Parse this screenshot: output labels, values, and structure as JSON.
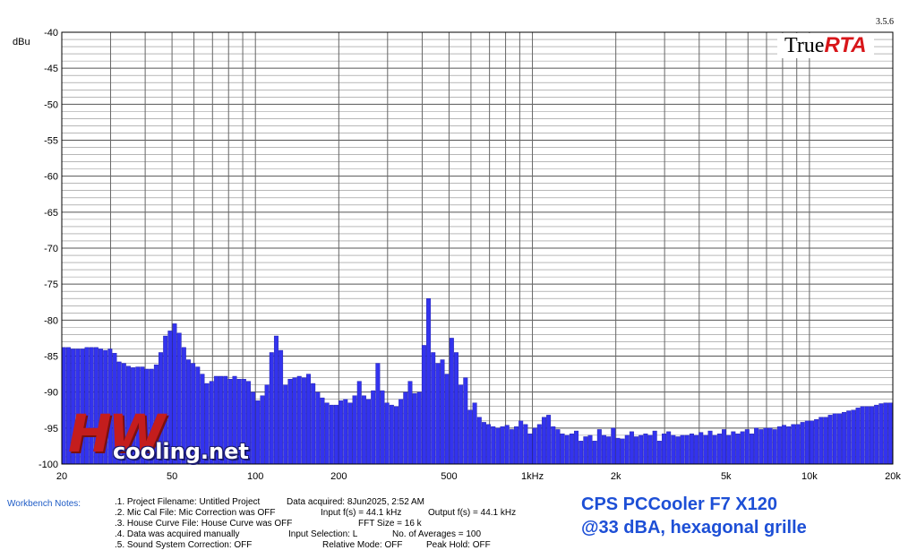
{
  "version": "3.5.6",
  "logo": {
    "true_text": "True",
    "rta_text": "RTA"
  },
  "watermark": {
    "hw_text": "HW",
    "net_text": "cooling.net"
  },
  "notes": {
    "label": "Workbench Notes:",
    "lines": [
      ".1. Project Filename: Untitled Project",
      ".2. Mic Cal File: Mic Correction was OFF",
      ".3. House Curve File: House Curve was OFF",
      ".4. Data was acquired manually",
      ".5. Sound System Correction: OFF"
    ],
    "col2": [
      "Data acquired: 8Jun2025, 2:52 AM",
      "Input f(s) = 44.1 kHz",
      "FFT Size = 16 k",
      "Input Selection: L",
      "Relative Mode:  OFF"
    ],
    "col3": [
      "",
      "Output f(s) = 44.1 kHz",
      "",
      "No. of Averages = 100",
      "Peak Hold: OFF"
    ]
  },
  "caption": {
    "line1": "CPS PCCooler F7 X120",
    "line2": "@33 dBA, hexagonal grille"
  },
  "colors": {
    "bar": "#3333ee",
    "bar_edge": "#1a1aa0",
    "caption": "#1d4fd6",
    "notes_label": "#1e5bc6",
    "rta_red": "#d8161a"
  },
  "chart_data": {
    "type": "bar",
    "ylabel": "dBu",
    "ylim": [
      -100,
      -40
    ],
    "xlim": [
      20,
      20000
    ],
    "xscale": "log",
    "grid": true,
    "y_ticks": [
      -40,
      -45,
      -50,
      -55,
      -60,
      -65,
      -70,
      -75,
      -80,
      -85,
      -90,
      -95,
      -100
    ],
    "x_tick_labels": [
      {
        "v": 20,
        "label": "20"
      },
      {
        "v": 50,
        "label": "50"
      },
      {
        "v": 100,
        "label": "100"
      },
      {
        "v": 200,
        "label": "200"
      },
      {
        "v": 500,
        "label": "500"
      },
      {
        "v": 1000,
        "label": "1kHz"
      },
      {
        "v": 2000,
        "label": "2k"
      },
      {
        "v": 5000,
        "label": "5k"
      },
      {
        "v": 10000,
        "label": "10k"
      },
      {
        "v": 20000,
        "label": "20k"
      }
    ],
    "values": [
      -83.8,
      -83.8,
      -84.0,
      -84.0,
      -84.0,
      -83.8,
      -83.8,
      -83.8,
      -84.0,
      -84.2,
      -84.0,
      -84.6,
      -85.8,
      -86.0,
      -86.4,
      -86.6,
      -86.5,
      -86.5,
      -86.8,
      -86.8,
      -86.2,
      -84.5,
      -82.2,
      -81.5,
      -80.5,
      -81.8,
      -83.8,
      -85.5,
      -86.0,
      -86.5,
      -87.5,
      -88.8,
      -88.5,
      -87.8,
      -87.8,
      -87.8,
      -88.2,
      -87.8,
      -88.2,
      -88.2,
      -88.5,
      -90.0,
      -91.2,
      -90.5,
      -89.0,
      -84.5,
      -82.2,
      -84.2,
      -89.0,
      -88.2,
      -88.0,
      -87.8,
      -88.0,
      -87.5,
      -88.8,
      -90.0,
      -90.8,
      -91.5,
      -91.8,
      -91.8,
      -91.2,
      -91.0,
      -91.5,
      -90.5,
      -88.5,
      -90.5,
      -91.0,
      -89.8,
      -86.0,
      -89.8,
      -91.5,
      -91.8,
      -92.0,
      -91.0,
      -90.0,
      -88.5,
      -90.2,
      -90.0,
      -83.5,
      -77.0,
      -84.5,
      -86.0,
      -85.5,
      -87.5,
      -82.5,
      -84.5,
      -89.0,
      -88.0,
      -92.5,
      -91.5,
      -93.5,
      -94.2,
      -94.5,
      -94.8,
      -95.0,
      -94.8,
      -94.6,
      -95.2,
      -94.8,
      -94.0,
      -94.5,
      -95.8,
      -95.0,
      -94.5,
      -93.5,
      -93.2,
      -94.8,
      -95.2,
      -95.8,
      -96.0,
      -95.8,
      -95.4,
      -96.8,
      -96.2,
      -96.0,
      -96.8,
      -95.2,
      -96.0,
      -96.2,
      -95.0,
      -96.4,
      -96.5,
      -96.0,
      -95.5,
      -96.2,
      -96.0,
      -95.8,
      -96.0,
      -95.4,
      -96.8,
      -95.8,
      -95.5,
      -96.0,
      -96.2,
      -96.0,
      -96.0,
      -95.8,
      -96.0,
      -95.6,
      -96.0,
      -95.4,
      -96.0,
      -95.8,
      -95.2,
      -96.0,
      -95.5,
      -95.8,
      -95.5,
      -95.2,
      -95.8,
      -95.0,
      -95.2,
      -95.0,
      -95.0,
      -95.2,
      -94.8,
      -94.6,
      -94.8,
      -94.5,
      -94.5,
      -94.2,
      -94.0,
      -94.0,
      -93.8,
      -93.5,
      -93.5,
      -93.2,
      -93.0,
      -93.0,
      -92.8,
      -92.6,
      -92.5,
      -92.2,
      -92.0,
      -92.0,
      -92.0,
      -91.8,
      -91.6,
      -91.5,
      -91.5
    ]
  }
}
